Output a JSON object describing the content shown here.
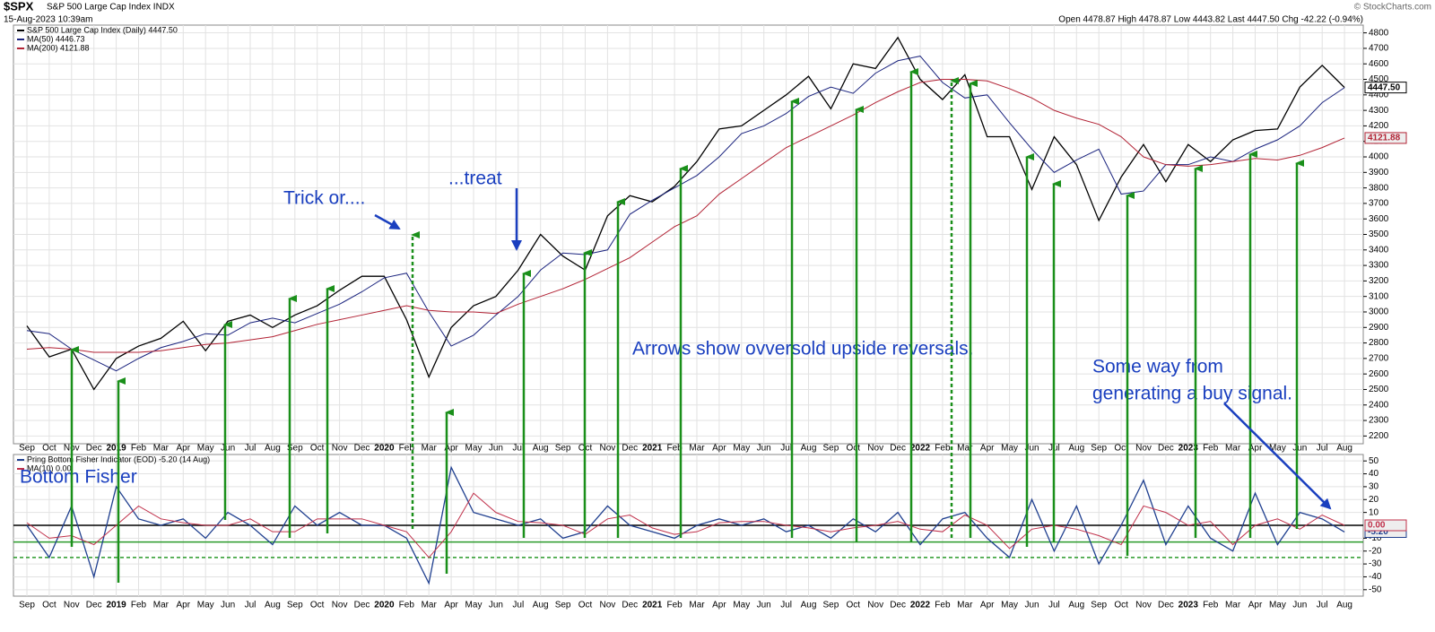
{
  "header": {
    "symbol": "$SPX",
    "name": "S&P 500 Large Cap Index INDX",
    "timestamp": "15-Aug-2023 10:39am",
    "quote": "Open 4478.87 High 4478.87 Low 4443.82 Last 4447.50 Chg -42.22 (-0.94%)",
    "credit": "© StockCharts.com"
  },
  "chart_data": [
    {
      "type": "line",
      "categories": [
        "Sep",
        "Oct",
        "Nov",
        "Dec",
        "2019",
        "Feb",
        "Mar",
        "Apr",
        "May",
        "Jun",
        "Jul",
        "Aug",
        "Sep",
        "Oct",
        "Nov",
        "Dec",
        "2020",
        "Feb",
        "Mar",
        "Apr",
        "May",
        "Jun",
        "Jul",
        "Aug",
        "Sep",
        "Oct",
        "Nov",
        "Dec",
        "2021",
        "Feb",
        "Mar",
        "Apr",
        "May",
        "Jun",
        "Jul",
        "Aug",
        "Sep",
        "Oct",
        "Nov",
        "Dec",
        "2022",
        "Feb",
        "Mar",
        "Apr",
        "May",
        "Jun",
        "Jul",
        "Aug",
        "Sep",
        "Oct",
        "Nov",
        "Dec",
        "2023",
        "Feb",
        "Mar",
        "Apr",
        "May",
        "Jun",
        "Jul",
        "Aug"
      ],
      "series": [
        {
          "name": "S&P 500 Large Cap Index (Daily) 4447.50",
          "color": "#000000",
          "last_label": "4447.50",
          "values": [
            2910,
            2710,
            2760,
            2500,
            2700,
            2780,
            2830,
            2940,
            2750,
            2940,
            2980,
            2900,
            2980,
            3040,
            3140,
            3230,
            3230,
            2950,
            2580,
            2900,
            3040,
            3100,
            3270,
            3500,
            3360,
            3270,
            3620,
            3750,
            3710,
            3810,
            3970,
            4180,
            4200,
            4300,
            4400,
            4520,
            4310,
            4600,
            4570,
            4770,
            4500,
            4370,
            4530,
            4130,
            4130,
            3790,
            4130,
            3950,
            3590,
            3870,
            4080,
            3840,
            4080,
            3970,
            4110,
            4170,
            4180,
            4450,
            4590,
            4447.5
          ]
        },
        {
          "name": "MA(50) 4446.73",
          "color": "#1a237e",
          "values": [
            2880,
            2860,
            2760,
            2690,
            2620,
            2700,
            2770,
            2810,
            2860,
            2850,
            2930,
            2960,
            2930,
            2990,
            3050,
            3130,
            3220,
            3250,
            3000,
            2780,
            2850,
            2980,
            3100,
            3270,
            3380,
            3370,
            3400,
            3630,
            3720,
            3800,
            3880,
            4000,
            4150,
            4200,
            4280,
            4390,
            4450,
            4410,
            4540,
            4620,
            4650,
            4480,
            4380,
            4400,
            4220,
            4050,
            3900,
            3980,
            4050,
            3760,
            3780,
            3950,
            3950,
            4000,
            3970,
            4050,
            4110,
            4200,
            4350,
            4446.73
          ]
        },
        {
          "name": "MA(200) 4121.88",
          "color": "#b22234",
          "last_label": "4121.88",
          "values": [
            2760,
            2770,
            2760,
            2740,
            2740,
            2740,
            2750,
            2770,
            2790,
            2800,
            2820,
            2840,
            2880,
            2920,
            2950,
            2980,
            3010,
            3040,
            3010,
            3000,
            3000,
            2990,
            3050,
            3100,
            3150,
            3210,
            3280,
            3350,
            3450,
            3550,
            3620,
            3760,
            3860,
            3960,
            4060,
            4130,
            4200,
            4270,
            4350,
            4420,
            4480,
            4500,
            4500,
            4490,
            4440,
            4380,
            4300,
            4250,
            4210,
            4130,
            4000,
            3950,
            3940,
            3950,
            3970,
            3990,
            3980,
            4010,
            4060,
            4121.88
          ]
        }
      ],
      "ylim": [
        2150,
        4850
      ],
      "yticks": [
        2200,
        2300,
        2400,
        2500,
        2600,
        2700,
        2800,
        2900,
        3000,
        3100,
        3200,
        3300,
        3400,
        3500,
        3600,
        3700,
        3800,
        3900,
        4000,
        4100,
        4200,
        4300,
        4400,
        4500,
        4600,
        4700,
        4800
      ],
      "grid": true,
      "annotations": [
        "Trick or....",
        "...treat",
        "Arrows show ovversold upside reversals.",
        "Some way from",
        "generating a buy signal."
      ]
    },
    {
      "type": "line",
      "categories": [
        "Sep",
        "Oct",
        "Nov",
        "Dec",
        "2019",
        "Feb",
        "Mar",
        "Apr",
        "May",
        "Jun",
        "Jul",
        "Aug",
        "Sep",
        "Oct",
        "Nov",
        "Dec",
        "2020",
        "Feb",
        "Mar",
        "Apr",
        "May",
        "Jun",
        "Jul",
        "Aug",
        "Sep",
        "Oct",
        "Nov",
        "Dec",
        "2021",
        "Feb",
        "Mar",
        "Apr",
        "May",
        "Jun",
        "Jul",
        "Aug",
        "Sep",
        "Oct",
        "Nov",
        "Dec",
        "2022",
        "Feb",
        "Mar",
        "Apr",
        "May",
        "Jun",
        "Jul",
        "Aug",
        "Sep",
        "Oct",
        "Nov",
        "Dec",
        "2023",
        "Feb",
        "Mar",
        "Apr",
        "May",
        "Jun",
        "Jul",
        "Aug"
      ],
      "series": [
        {
          "name": "Pring Bottom Fisher Indicator (EOD) -5.20 (14 Aug)",
          "color": "#1f3f8f",
          "last_label": "-5.20",
          "values": [
            0,
            -25,
            15,
            -40,
            30,
            5,
            0,
            5,
            -10,
            10,
            0,
            -15,
            15,
            0,
            10,
            0,
            0,
            -10,
            -45,
            45,
            10,
            5,
            0,
            5,
            -10,
            -5,
            15,
            0,
            -5,
            -10,
            0,
            5,
            0,
            5,
            -5,
            0,
            -10,
            5,
            -5,
            10,
            -15,
            5,
            10,
            -10,
            -25,
            20,
            -20,
            15,
            -30,
            0,
            35,
            -15,
            15,
            -10,
            -20,
            25,
            -15,
            10,
            5,
            -5.2
          ]
        },
        {
          "name": "MA(10) 0.00",
          "color": "#c0304a",
          "last_label": "0.00",
          "values": [
            2,
            -10,
            -8,
            -15,
            0,
            15,
            5,
            2,
            0,
            0,
            5,
            -5,
            -5,
            5,
            5,
            5,
            0,
            -5,
            -25,
            -5,
            25,
            10,
            3,
            2,
            0,
            -7,
            5,
            8,
            -2,
            -7,
            -5,
            2,
            3,
            3,
            0,
            -2,
            -5,
            -2,
            0,
            3,
            -3,
            -5,
            8,
            0,
            -18,
            -3,
            0,
            -3,
            -8,
            -15,
            15,
            10,
            0,
            3,
            -15,
            0,
            5,
            -3,
            8,
            0
          ]
        }
      ],
      "ylim": [
        -55,
        55
      ],
      "yticks": [
        50,
        40,
        30,
        20,
        10,
        -10,
        -20,
        -30,
        -40,
        -50
      ],
      "hlines": [
        {
          "value": 0,
          "color": "#000000"
        },
        {
          "value": -13,
          "color": "#2a9a2a"
        },
        {
          "value": -25,
          "color": "#2a9a2a",
          "dashed": true
        }
      ],
      "annotations": [
        "Bottom Fisher"
      ]
    }
  ]
}
